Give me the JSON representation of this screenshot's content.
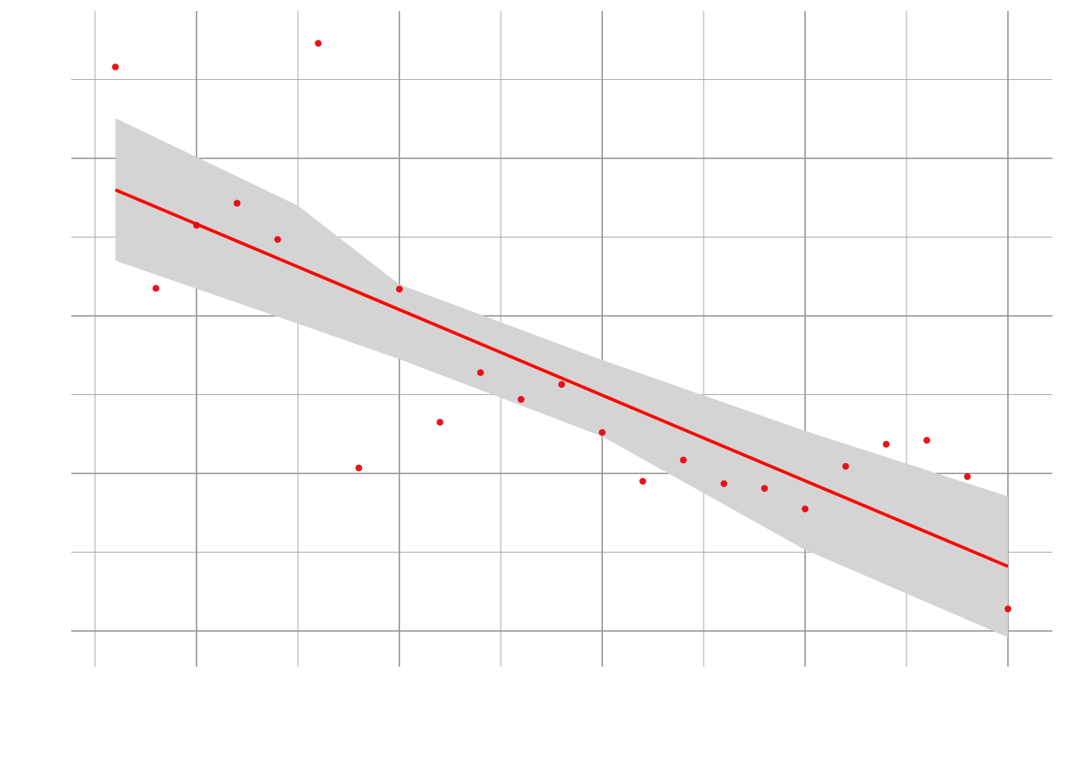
{
  "chart_data": {
    "type": "scatter",
    "title": "",
    "xlabel": "",
    "ylabel": "",
    "xlim": [
      -0.2,
      4.5
    ],
    "ylim": [
      -0.45,
      7.9
    ],
    "grid": true,
    "x_major_ticks": [
      0.5,
      1.5,
      2.5,
      3.5,
      4.5
    ],
    "x_minor_ticks": [
      0,
      1,
      2,
      3,
      4
    ],
    "y_major_ticks": [
      0,
      2,
      4,
      6
    ],
    "y_minor_ticks": [
      1,
      3,
      5,
      7
    ],
    "points": {
      "color": "#e8000b",
      "x": [
        0.1,
        0.3,
        0.5,
        0.7,
        0.9,
        1.1,
        1.3,
        1.5,
        1.7,
        1.9,
        2.1,
        2.3,
        2.5,
        2.7,
        2.9,
        3.1,
        3.3,
        3.5,
        3.7,
        3.9,
        4.1,
        4.3,
        4.5
      ],
      "y": [
        7.16,
        4.35,
        5.15,
        5.43,
        4.97,
        7.46,
        2.07,
        4.34,
        2.65,
        3.28,
        2.94,
        3.13,
        2.52,
        1.9,
        2.17,
        1.87,
        1.81,
        1.55,
        2.09,
        2.37,
        2.42,
        1.96,
        0.28
      ]
    },
    "fit_line": {
      "color": "#ff0000",
      "x": [
        0.1,
        4.5
      ],
      "y": [
        5.6,
        0.82
      ]
    },
    "confidence_band": {
      "color": "#d4d4d4",
      "x": [
        0.1,
        1.0,
        1.5,
        2.5,
        3.5,
        4.5
      ],
      "upper": [
        6.51,
        5.4,
        4.4,
        3.44,
        2.54,
        1.71
      ],
      "lower": [
        4.7,
        3.9,
        3.45,
        2.47,
        1.03,
        -0.08
      ]
    }
  }
}
